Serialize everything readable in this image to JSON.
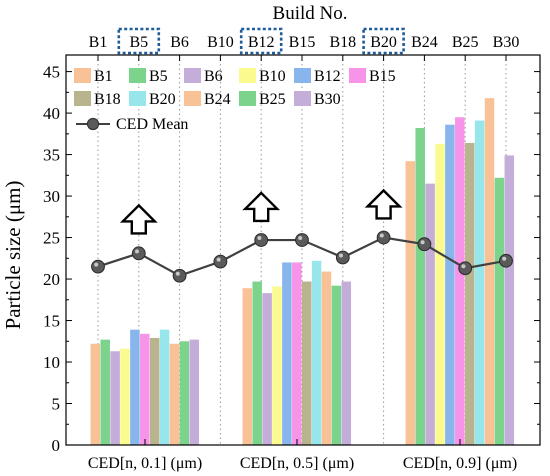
{
  "chart_data": {
    "type": "bar",
    "title": "Build No.",
    "xlabel": "",
    "ylabel": "Particle size (μm)",
    "ylim": [
      0,
      47
    ],
    "yticks": [
      0,
      5,
      10,
      15,
      20,
      25,
      30,
      35,
      40,
      45
    ],
    "categories": [
      "CED[n, 0.1] (μm)",
      "CED[n, 0.5] (μm)",
      "CED[n, 0.9] (μm)"
    ],
    "series": [
      {
        "name": "B1",
        "color": "#F9C196",
        "values": [
          12.2,
          18.9,
          34.2
        ]
      },
      {
        "name": "B5",
        "color": "#7CD38B",
        "values": [
          12.7,
          19.7,
          38.2
        ]
      },
      {
        "name": "B6",
        "color": "#C4AED9",
        "values": [
          11.3,
          18.3,
          31.5
        ]
      },
      {
        "name": "B10",
        "color": "#FAFA8E",
        "values": [
          11.6,
          19.1,
          36.3
        ]
      },
      {
        "name": "B12",
        "color": "#87B5EC",
        "values": [
          13.9,
          22.0,
          38.6
        ]
      },
      {
        "name": "B15",
        "color": "#F794EA",
        "values": [
          13.4,
          22.0,
          39.5
        ]
      },
      {
        "name": "B18",
        "color": "#B8B58E",
        "values": [
          12.9,
          19.7,
          36.4
        ]
      },
      {
        "name": "B20",
        "color": "#96E6EC",
        "values": [
          13.9,
          22.2,
          39.1
        ]
      },
      {
        "name": "B24",
        "color": "#F9C196",
        "values": [
          12.2,
          20.9,
          41.8
        ]
      },
      {
        "name": "B25",
        "color": "#7CD38B",
        "values": [
          12.5,
          19.2,
          32.2
        ]
      },
      {
        "name": "B30",
        "color": "#C4AED9",
        "values": [
          12.7,
          19.7,
          34.9
        ]
      }
    ],
    "top_axis": {
      "label": "Build No.",
      "ticks": [
        "B1",
        "B5",
        "B6",
        "B10",
        "B12",
        "B15",
        "B18",
        "B20",
        "B24",
        "B25",
        "B30"
      ],
      "highlighted": [
        "B5",
        "B12",
        "B20"
      ],
      "highlight_color": "#1F5C99"
    },
    "line_series": {
      "name": "CED Mean",
      "x": [
        "B1",
        "B5",
        "B6",
        "B10",
        "B12",
        "B15",
        "B18",
        "B20",
        "B24",
        "B25",
        "B30"
      ],
      "values": [
        21.5,
        23.1,
        20.4,
        22.1,
        24.7,
        24.7,
        22.6,
        25.0,
        24.2,
        21.3,
        22.2
      ],
      "color": "#404040"
    },
    "annotations": [
      {
        "type": "up-arrow",
        "at": "B5",
        "value": 25.5
      },
      {
        "type": "up-arrow",
        "at": "B12",
        "value": 27.0
      },
      {
        "type": "up-arrow",
        "at": "B20",
        "value": 27.3
      }
    ],
    "grid": "vertical dotted lines at top-axis ticks",
    "legend": {
      "placement": "top-left",
      "columns": 6
    }
  }
}
